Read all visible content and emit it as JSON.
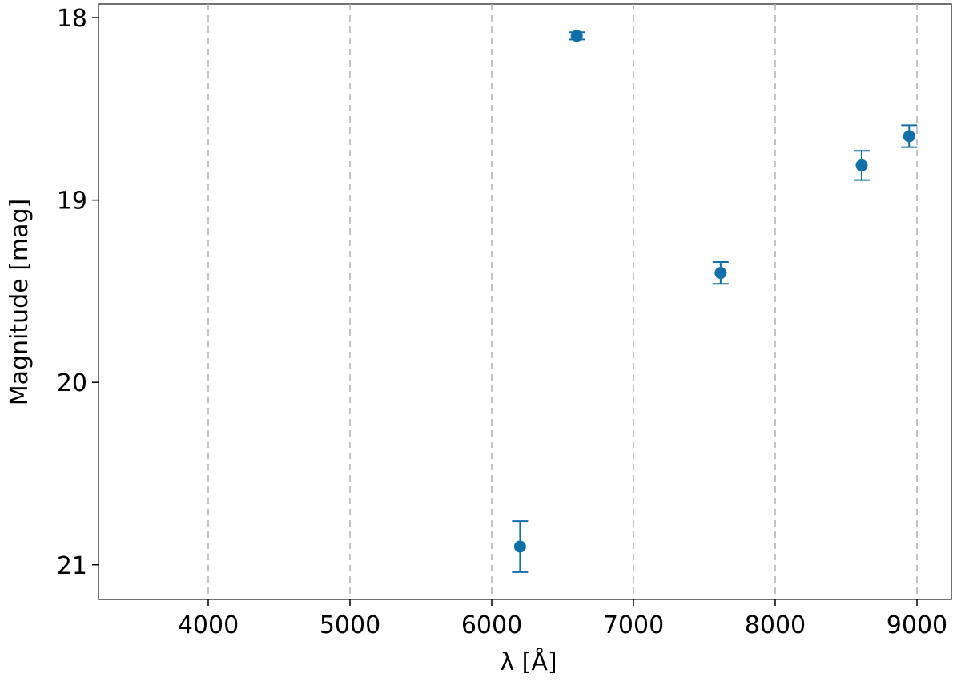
{
  "chart_data": {
    "type": "errorbar_scatter",
    "x_label": "λ [Å]",
    "y_label": "Magnitude [mag]",
    "series": [
      {
        "color": "#1170aa",
        "x": [
          6200,
          6600,
          7615,
          8610,
          8945
        ],
        "values": [
          20.9,
          18.1,
          19.4,
          18.81,
          18.65
        ],
        "errors": [
          0.14,
          0.02,
          0.06,
          0.08,
          0.06
        ]
      }
    ],
    "xlim": [
      3226,
      9243
    ],
    "xticks": [
      4000,
      5000,
      6000,
      7000,
      8000,
      9000
    ],
    "ylim": [
      21.19,
      17.925
    ],
    "yticks": [
      18,
      19,
      20,
      21
    ],
    "grid": "x"
  }
}
